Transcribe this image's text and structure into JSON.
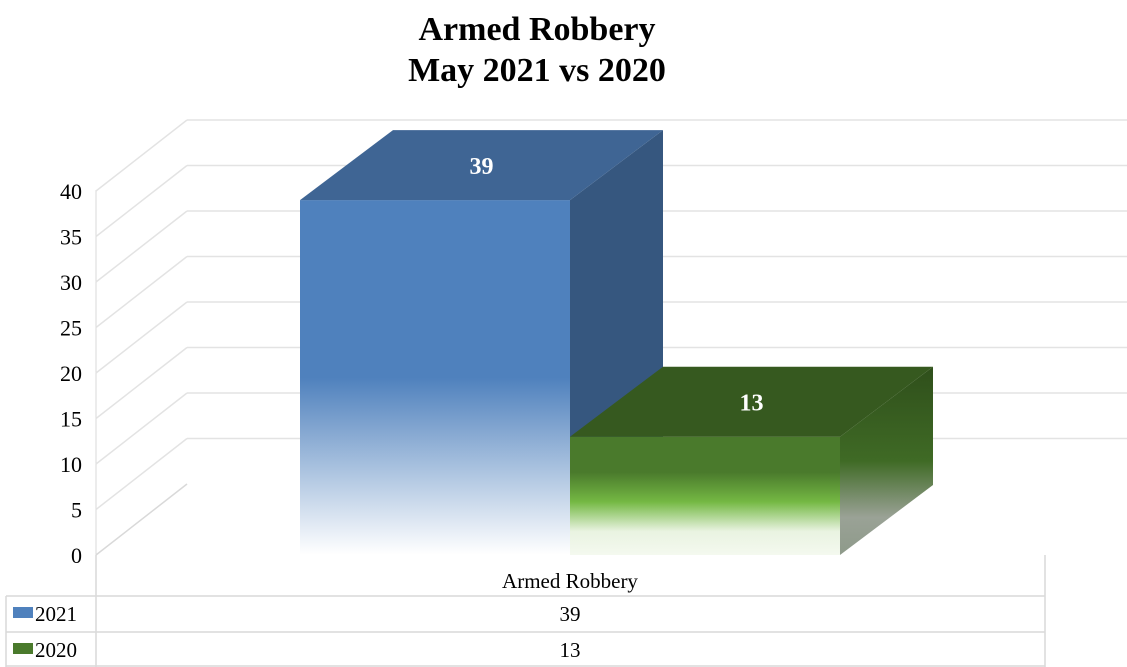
{
  "chart_data": {
    "type": "bar",
    "title": "Armed Robbery",
    "subtitle": "May 2021 vs 2020",
    "categories": [
      "Armed Robbery"
    ],
    "series": [
      {
        "name": "2021",
        "values": [
          39
        ],
        "color": "#4f81bd"
      },
      {
        "name": "2020",
        "values": [
          13
        ],
        "color": "#4a7a2c"
      }
    ],
    "ylim": [
      0,
      45
    ],
    "yticks": [
      0,
      5,
      10,
      15,
      20,
      25,
      30,
      35,
      40
    ],
    "grid": true,
    "legend": "data-table",
    "data_table": true
  }
}
